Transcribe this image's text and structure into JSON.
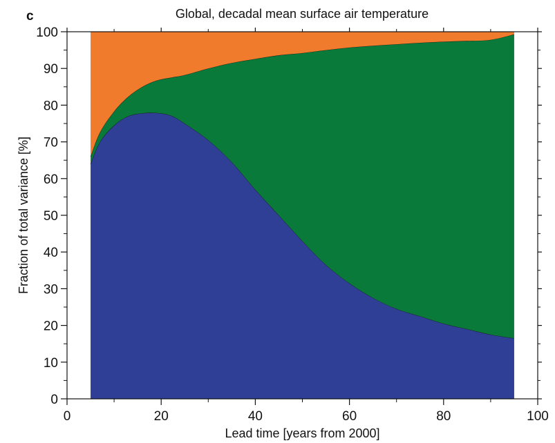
{
  "panel_label": "c",
  "chart_data": {
    "type": "area",
    "title": "Global, decadal mean surface air temperature",
    "xlabel": "Lead time  [years from 2000]",
    "ylabel": "Fraction of total variance  [%]",
    "xlim": [
      0,
      100
    ],
    "ylim": [
      0,
      100
    ],
    "xticks": [
      0,
      20,
      40,
      60,
      80,
      100
    ],
    "yticks": [
      0,
      10,
      20,
      30,
      40,
      50,
      60,
      70,
      80,
      90,
      100
    ],
    "x": [
      5,
      7,
      10,
      13,
      16,
      19,
      22,
      25,
      30,
      35,
      40,
      45,
      50,
      55,
      60,
      65,
      70,
      75,
      80,
      85,
      90,
      95
    ],
    "stacked": true,
    "series": [
      {
        "color": "#2e3f95",
        "values": [
          64,
          70,
          74.5,
          77,
          77.8,
          77.9,
          77.2,
          75,
          70.5,
          64.5,
          57,
          50,
          43,
          36.5,
          31.5,
          27.5,
          24.5,
          22.5,
          20.5,
          19,
          17.5,
          16.5
        ]
      },
      {
        "color": "#0a7a3a",
        "values": [
          2,
          2.6,
          3.8,
          5.3,
          7.2,
          8.8,
          10.3,
          13.2,
          19.5,
          27,
          35.6,
          43.6,
          51.2,
          58.5,
          64.2,
          68.7,
          72.1,
          74.5,
          76.8,
          78.5,
          80.3,
          82.8
        ]
      },
      {
        "color": "#f07b2c",
        "values": [
          34,
          27.4,
          21.7,
          17.7,
          15,
          13.3,
          12.5,
          11.8,
          10,
          8.5,
          7.4,
          6.4,
          5.8,
          5,
          4.3,
          3.8,
          3.4,
          3,
          2.7,
          2.5,
          2.2,
          0.7
        ]
      }
    ],
    "grid": false,
    "legend": "none"
  }
}
